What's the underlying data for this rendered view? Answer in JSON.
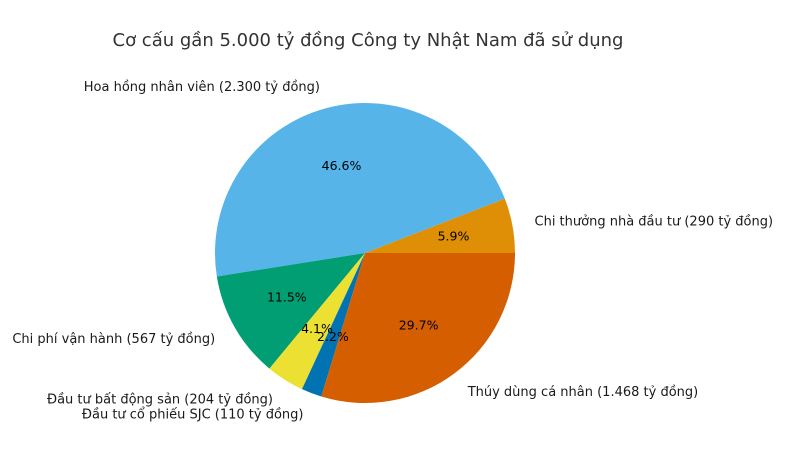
{
  "chart_data": {
    "type": "pie",
    "title": "Cơ cấu gần 5.000 tỷ đồng Công ty Nhật Nam đã sử dụng",
    "legend": "none",
    "background": "#ffffff",
    "start_angle_deg": 0,
    "direction": "counterclockwise",
    "percent_labels_inside": true,
    "slices": [
      {
        "name": "Chi thưởng nhà đầu tư",
        "amount": "290 tỷ đồng",
        "label": "Chi thưởng nhà đầu tư (290 tỷ đồng)",
        "percent": 5.9,
        "color": "#de8f05"
      },
      {
        "name": "Hoa hồng nhân viên",
        "amount": "2.300 tỷ đồng",
        "label": "Hoa hồng nhân viên (2.300 tỷ đồng)",
        "percent": 46.6,
        "color": "#56b4e9"
      },
      {
        "name": "Chi phí vận hành",
        "amount": "567 tỷ đồng",
        "label": "Chi phí vận hành (567 tỷ đồng)",
        "percent": 11.5,
        "color": "#029e73"
      },
      {
        "name": "Đầu tư bất động sản",
        "amount": "204 tỷ đồng",
        "label": "Đầu tư bất động sản (204 tỷ đồng)",
        "percent": 4.1,
        "color": "#ece133"
      },
      {
        "name": "Đầu tư cổ phiếu SJC",
        "amount": "110 tỷ đồng",
        "label": "Đầu tư cổ phiếu SJC (110 tỷ đồng)",
        "percent": 2.2,
        "color": "#0173b2"
      },
      {
        "name": "Thúy dùng cá nhân",
        "amount": "1.468 tỷ đồng",
        "label": "Thúy dùng cá nhân (1.468 tỷ đồng)",
        "percent": 29.7,
        "color": "#d55e00"
      }
    ],
    "text_colors": {
      "title": "#333333",
      "slice_labels": "#1a1a1a",
      "percent_labels": "#000000"
    }
  }
}
